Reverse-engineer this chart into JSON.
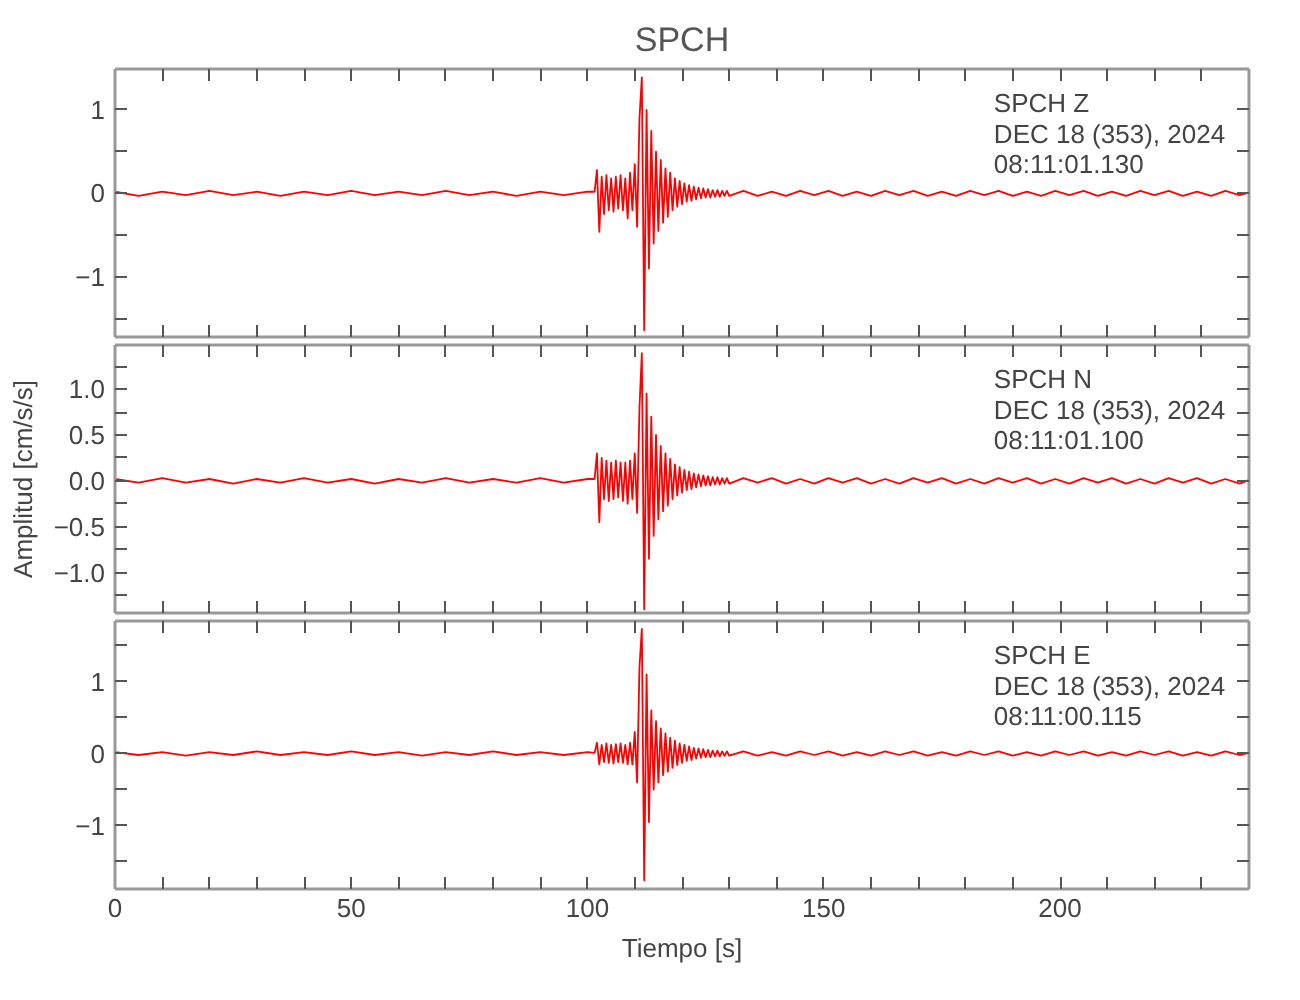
{
  "chart_data": [
    {
      "type": "line",
      "title": "SPCH",
      "tick_labels": "y",
      "annotations": [
        "SPCH   Z",
        "DEC 18 (353), 2024",
        "08:11:01.130"
      ],
      "xlim": [
        0,
        240
      ],
      "ylim": [
        -1.72,
        1.49
      ],
      "xticks": [
        0,
        {
          "value": 10,
          "label": null
        },
        {
          "value": 20,
          "label": null
        },
        {
          "value": 30,
          "label": null
        },
        {
          "value": 40,
          "label": null
        },
        50,
        {
          "value": 60,
          "label": null
        },
        {
          "value": 70,
          "label": null
        },
        {
          "value": 80,
          "label": null
        },
        {
          "value": 90,
          "label": null
        },
        100,
        {
          "value": 110,
          "label": null
        },
        {
          "value": 120,
          "label": null
        },
        {
          "value": 130,
          "label": null
        },
        {
          "value": 140,
          "label": null
        },
        150,
        {
          "value": 160,
          "label": null
        },
        {
          "value": 170,
          "label": null
        },
        {
          "value": 180,
          "label": null
        },
        {
          "value": 190,
          "label": null
        },
        200,
        {
          "value": 210,
          "label": null
        },
        {
          "value": 220,
          "label": null
        },
        {
          "value": 230,
          "label": null
        },
        {
          "value": 240,
          "label": null
        }
      ],
      "yticks": [
        {
          "value": -1.5,
          "label": null
        },
        {
          "value": -1,
          "label": "−1"
        },
        {
          "value": -0.5,
          "label": null
        },
        0,
        {
          "value": 0.5,
          "label": null
        },
        1
      ],
      "x": [
        0,
        5,
        10,
        15,
        20,
        25,
        30,
        35,
        40,
        45,
        50,
        55,
        60,
        65,
        70,
        75,
        80,
        85,
        90,
        95,
        100,
        101.5,
        102,
        102.5,
        103,
        103.5,
        104,
        104.5,
        105,
        105.5,
        106,
        106.5,
        107,
        107.5,
        108,
        108.5,
        109,
        109.5,
        110,
        110.5,
        111,
        111.5,
        112,
        112.5,
        113,
        113.5,
        114,
        114.5,
        115,
        115.5,
        116,
        116.5,
        117,
        117.5,
        118,
        118.5,
        119,
        119.5,
        120,
        120.5,
        121,
        121.5,
        122,
        122.5,
        123,
        123.5,
        124,
        124.5,
        125,
        125.5,
        126,
        126.5,
        127,
        127.5,
        128,
        128.5,
        129,
        129.5,
        130,
        133,
        136,
        139,
        142,
        145,
        148,
        151,
        154,
        157,
        160,
        163,
        166,
        169,
        172,
        175,
        178,
        181,
        184,
        187,
        190,
        193,
        196,
        199,
        202,
        205,
        208,
        211,
        214,
        217,
        220,
        223,
        226,
        229,
        232,
        235,
        238,
        240
      ],
      "series": [
        {
          "color": "#ff0000",
          "values": [
            0.02,
            -0.03,
            0.02,
            -0.02,
            0.03,
            -0.02,
            0.02,
            -0.03,
            0.02,
            -0.02,
            0.03,
            -0.02,
            0.02,
            -0.02,
            0.03,
            -0.02,
            0.02,
            -0.03,
            0.02,
            -0.02,
            0.02,
            0.02,
            0.28,
            -0.46,
            0.2,
            -0.25,
            0.22,
            -0.2,
            0.18,
            -0.22,
            0.2,
            -0.18,
            0.22,
            -0.2,
            0.18,
            -0.3,
            0.25,
            -0.2,
            0.35,
            -0.4,
            0.9,
            1.39,
            -1.64,
            1.0,
            -0.9,
            0.75,
            -0.6,
            0.5,
            -0.45,
            0.4,
            -0.35,
            0.3,
            -0.28,
            0.25,
            -0.2,
            0.18,
            -0.16,
            0.15,
            -0.13,
            0.12,
            -0.1,
            0.1,
            -0.09,
            0.08,
            -0.07,
            0.07,
            -0.06,
            0.06,
            -0.05,
            0.05,
            -0.05,
            0.04,
            -0.04,
            0.04,
            -0.04,
            0.03,
            -0.03,
            0.03,
            -0.03,
            0.03,
            -0.03,
            0.02,
            -0.03,
            0.03,
            -0.02,
            0.03,
            -0.03,
            0.02,
            -0.03,
            0.03,
            -0.02,
            0.03,
            -0.03,
            0.02,
            -0.03,
            0.03,
            -0.02,
            0.03,
            -0.03,
            0.02,
            -0.03,
            0.03,
            -0.02,
            0.03,
            -0.03,
            0.02,
            -0.03,
            0.03,
            -0.02,
            0.03,
            -0.03,
            0.02,
            -0.03,
            0.03,
            -0.02,
            0.01
          ]
        }
      ]
    },
    {
      "type": "line",
      "ylabel": "Amplitud [cm/s/s]",
      "tick_labels": "y",
      "annotations": [
        "SPCH   N",
        "DEC 18 (353), 2024",
        "08:11:01.100"
      ],
      "xlim": [
        0,
        240
      ],
      "ylim": [
        -1.44,
        1.48
      ],
      "xticks": [
        0,
        {
          "value": 10,
          "label": null
        },
        {
          "value": 20,
          "label": null
        },
        {
          "value": 30,
          "label": null
        },
        {
          "value": 40,
          "label": null
        },
        50,
        {
          "value": 60,
          "label": null
        },
        {
          "value": 70,
          "label": null
        },
        {
          "value": 80,
          "label": null
        },
        {
          "value": 90,
          "label": null
        },
        100,
        {
          "value": 110,
          "label": null
        },
        {
          "value": 120,
          "label": null
        },
        {
          "value": 130,
          "label": null
        },
        {
          "value": 140,
          "label": null
        },
        150,
        {
          "value": 160,
          "label": null
        },
        {
          "value": 170,
          "label": null
        },
        {
          "value": 180,
          "label": null
        },
        {
          "value": 190,
          "label": null
        },
        200,
        {
          "value": 210,
          "label": null
        },
        {
          "value": 220,
          "label": null
        },
        {
          "value": 230,
          "label": null
        },
        {
          "value": 240,
          "label": null
        }
      ],
      "yticks": [
        {
          "value": -1.25,
          "label": null
        },
        {
          "value": -1,
          "label": "−1.0"
        },
        {
          "value": -0.75,
          "label": null
        },
        {
          "value": -0.5,
          "label": "−0.5"
        },
        {
          "value": -0.25,
          "label": null
        },
        {
          "value": 0,
          "label": "0.0"
        },
        {
          "value": 0.25,
          "label": null
        },
        {
          "value": 0.5,
          "label": "0.5"
        },
        {
          "value": 0.75,
          "label": null
        },
        {
          "value": 1,
          "label": "1.0"
        },
        {
          "value": 1.25,
          "label": null
        }
      ],
      "x": [
        0,
        5,
        10,
        15,
        20,
        25,
        30,
        35,
        40,
        45,
        50,
        55,
        60,
        65,
        70,
        75,
        80,
        85,
        90,
        95,
        100,
        101.5,
        102,
        102.5,
        103,
        103.5,
        104,
        104.5,
        105,
        105.5,
        106,
        106.5,
        107,
        107.5,
        108,
        108.5,
        109,
        109.5,
        110,
        110.5,
        111,
        111.5,
        112,
        112.5,
        113,
        113.5,
        114,
        114.5,
        115,
        115.5,
        116,
        116.5,
        117,
        117.5,
        118,
        118.5,
        119,
        119.5,
        120,
        120.5,
        121,
        121.5,
        122,
        122.5,
        123,
        123.5,
        124,
        124.5,
        125,
        125.5,
        126,
        126.5,
        127,
        127.5,
        128,
        128.5,
        129,
        129.5,
        130,
        133,
        136,
        139,
        142,
        145,
        148,
        151,
        154,
        157,
        160,
        163,
        166,
        169,
        172,
        175,
        178,
        181,
        184,
        187,
        190,
        193,
        196,
        199,
        202,
        205,
        208,
        211,
        214,
        217,
        220,
        223,
        226,
        229,
        232,
        235,
        238,
        240
      ],
      "series": [
        {
          "color": "#ff0000",
          "values": [
            0.02,
            -0.02,
            0.03,
            -0.02,
            0.02,
            -0.03,
            0.02,
            -0.02,
            0.03,
            -0.02,
            0.02,
            -0.03,
            0.02,
            -0.02,
            0.03,
            -0.02,
            0.02,
            -0.02,
            0.03,
            -0.02,
            0.02,
            0.02,
            0.3,
            -0.45,
            0.25,
            -0.2,
            0.22,
            -0.22,
            0.2,
            -0.2,
            0.22,
            -0.18,
            0.2,
            -0.22,
            0.2,
            -0.25,
            0.22,
            -0.2,
            0.3,
            -0.35,
            0.8,
            1.39,
            -1.4,
            0.95,
            -0.85,
            0.7,
            -0.6,
            0.5,
            -0.42,
            0.38,
            -0.33,
            0.3,
            -0.27,
            0.24,
            -0.2,
            0.18,
            -0.16,
            0.15,
            -0.13,
            0.12,
            -0.1,
            0.1,
            -0.09,
            0.08,
            -0.07,
            0.07,
            -0.06,
            0.06,
            -0.05,
            0.05,
            -0.05,
            0.04,
            -0.04,
            0.04,
            -0.04,
            0.03,
            -0.03,
            0.03,
            -0.03,
            0.03,
            -0.02,
            0.03,
            -0.03,
            0.02,
            -0.03,
            0.03,
            -0.02,
            0.03,
            -0.03,
            0.02,
            -0.03,
            0.03,
            -0.02,
            0.03,
            -0.03,
            0.02,
            -0.03,
            0.03,
            -0.02,
            0.03,
            -0.03,
            0.02,
            -0.03,
            0.03,
            -0.02,
            0.03,
            -0.03,
            0.02,
            -0.03,
            0.03,
            -0.02,
            0.03,
            -0.03,
            0.02,
            -0.03,
            0.01
          ]
        }
      ]
    },
    {
      "type": "line",
      "xlabel": "Tiempo [s]",
      "annotations": [
        "SPCH   E",
        "DEC 18 (353), 2024",
        "08:11:00.115"
      ],
      "xlim": [
        0,
        240
      ],
      "ylim": [
        -1.88,
        1.84
      ],
      "xticks": [
        0,
        {
          "value": 10,
          "label": null
        },
        {
          "value": 20,
          "label": null
        },
        {
          "value": 30,
          "label": null
        },
        {
          "value": 40,
          "label": null
        },
        50,
        {
          "value": 60,
          "label": null
        },
        {
          "value": 70,
          "label": null
        },
        {
          "value": 80,
          "label": null
        },
        {
          "value": 90,
          "label": null
        },
        100,
        {
          "value": 110,
          "label": null
        },
        {
          "value": 120,
          "label": null
        },
        {
          "value": 130,
          "label": null
        },
        {
          "value": 140,
          "label": null
        },
        150,
        {
          "value": 160,
          "label": null
        },
        {
          "value": 170,
          "label": null
        },
        {
          "value": 180,
          "label": null
        },
        {
          "value": 190,
          "label": null
        },
        200,
        {
          "value": 210,
          "label": null
        },
        {
          "value": 220,
          "label": null
        },
        {
          "value": 230,
          "label": null
        },
        {
          "value": 240,
          "label": null
        }
      ],
      "yticks": [
        {
          "value": -1.5,
          "label": null
        },
        {
          "value": -1,
          "label": "−1"
        },
        {
          "value": -0.5,
          "label": null
        },
        0,
        {
          "value": 0.5,
          "label": null
        },
        1,
        {
          "value": 1.5,
          "label": null
        }
      ],
      "x": [
        0,
        5,
        10,
        15,
        20,
        25,
        30,
        35,
        40,
        45,
        50,
        55,
        60,
        65,
        70,
        75,
        80,
        85,
        90,
        95,
        100,
        101.5,
        102,
        102.5,
        103,
        103.5,
        104,
        104.5,
        105,
        105.5,
        106,
        106.5,
        107,
        107.5,
        108,
        108.5,
        109,
        109.5,
        110,
        110.5,
        111,
        111.5,
        112,
        112.5,
        113,
        113.5,
        114,
        114.5,
        115,
        115.5,
        116,
        116.5,
        117,
        117.5,
        118,
        118.5,
        119,
        119.5,
        120,
        120.5,
        121,
        121.5,
        122,
        122.5,
        123,
        123.5,
        124,
        124.5,
        125,
        125.5,
        126,
        126.5,
        127,
        127.5,
        128,
        128.5,
        129,
        129.5,
        130,
        133,
        136,
        139,
        142,
        145,
        148,
        151,
        154,
        157,
        160,
        163,
        166,
        169,
        172,
        175,
        178,
        181,
        184,
        187,
        190,
        193,
        196,
        199,
        202,
        205,
        208,
        211,
        214,
        217,
        220,
        223,
        226,
        229,
        232,
        235,
        238,
        240
      ],
      "series": [
        {
          "color": "#ff0000",
          "values": [
            0.02,
            -0.02,
            0.02,
            -0.03,
            0.02,
            -0.02,
            0.03,
            -0.02,
            0.02,
            -0.02,
            0.03,
            -0.02,
            0.02,
            -0.03,
            0.02,
            -0.02,
            0.03,
            -0.02,
            0.02,
            -0.02,
            0.02,
            0.01,
            0.15,
            -0.15,
            0.12,
            -0.12,
            0.14,
            -0.13,
            0.12,
            -0.14,
            0.13,
            -0.12,
            0.14,
            -0.13,
            0.12,
            -0.15,
            0.15,
            -0.15,
            0.3,
            -0.4,
            1.2,
            1.73,
            -1.76,
            1.1,
            -0.95,
            0.6,
            -0.5,
            0.45,
            -0.4,
            0.35,
            -0.3,
            0.28,
            -0.25,
            0.22,
            -0.2,
            0.18,
            -0.16,
            0.14,
            -0.13,
            0.12,
            -0.1,
            0.1,
            -0.09,
            0.08,
            -0.07,
            0.07,
            -0.06,
            0.06,
            -0.05,
            0.05,
            -0.05,
            0.04,
            -0.04,
            0.04,
            -0.04,
            0.03,
            -0.03,
            0.03,
            -0.03,
            0.03,
            -0.03,
            0.02,
            -0.03,
            0.03,
            -0.02,
            0.03,
            -0.03,
            0.02,
            -0.03,
            0.03,
            -0.02,
            0.03,
            -0.03,
            0.02,
            -0.03,
            0.03,
            -0.02,
            0.03,
            -0.03,
            0.02,
            -0.03,
            0.03,
            -0.02,
            0.03,
            -0.03,
            0.02,
            -0.03,
            0.03,
            -0.02,
            0.03,
            -0.03,
            0.02,
            -0.03,
            0.03,
            -0.02,
            0.01
          ]
        }
      ]
    }
  ]
}
